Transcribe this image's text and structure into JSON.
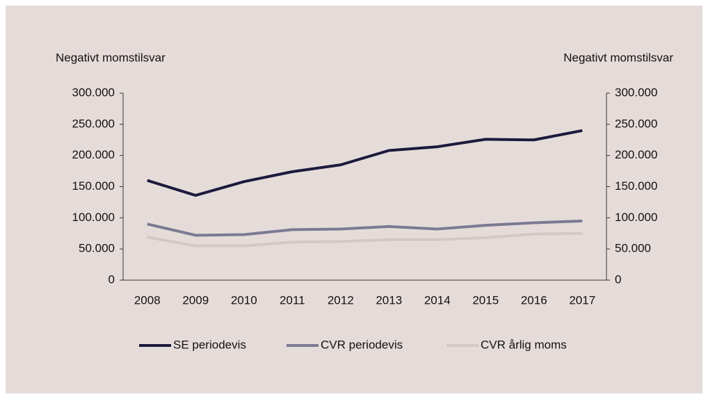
{
  "chart_data": {
    "type": "line",
    "y_label": "Negativt momstilsvar",
    "y2_label": "Negativt momstilsvar",
    "categories": [
      "2008",
      "2009",
      "2010",
      "2011",
      "2012",
      "2013",
      "2014",
      "2015",
      "2016",
      "2017"
    ],
    "series": [
      {
        "name": "SE periodevis",
        "color": "#1b1a3d",
        "values": [
          160000,
          136000,
          158000,
          174000,
          185000,
          208000,
          214000,
          226000,
          225000,
          240000
        ]
      },
      {
        "name": "CVR periodevis",
        "color": "#7b7a93",
        "values": [
          90000,
          72000,
          73000,
          81000,
          82000,
          86000,
          82000,
          88000,
          92000,
          95000
        ]
      },
      {
        "name": "CVR årlig moms",
        "color": "#d3c8c6",
        "values": [
          69000,
          55000,
          55000,
          61000,
          62000,
          65000,
          65000,
          68000,
          74000,
          75000
        ]
      }
    ],
    "ylim": [
      0,
      300000
    ],
    "yticks": [
      0,
      {
        "value": 50000,
        "label": "50.000"
      },
      {
        "value": 100000,
        "label": "100.000"
      },
      {
        "value": 150000,
        "label": "150.000"
      },
      {
        "value": 200000,
        "label": "200.000"
      },
      {
        "value": 250000,
        "label": "250.000"
      },
      {
        "value": 300000,
        "label": "300.000"
      }
    ],
    "y2lim": [
      0,
      300000
    ],
    "y2ticks": [
      0,
      {
        "value": 50000,
        "label": "50.000"
      },
      {
        "value": 100000,
        "label": "100.000"
      },
      {
        "value": 150000,
        "label": "150.000"
      },
      {
        "value": 200000,
        "label": "200.000"
      },
      {
        "value": 250000,
        "label": "250.000"
      },
      {
        "value": 300000,
        "label": "300.000"
      }
    ],
    "legend": "bottom"
  }
}
